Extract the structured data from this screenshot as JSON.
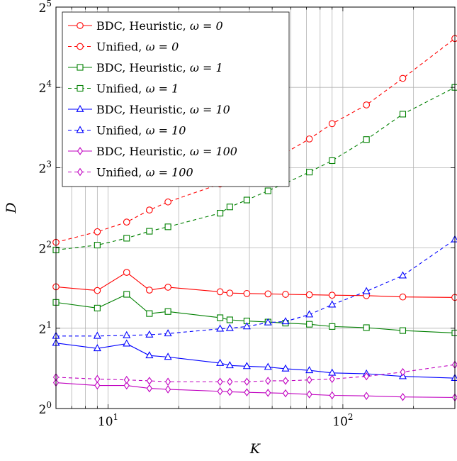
{
  "chart_data": {
    "type": "line",
    "xlabel": "K",
    "ylabel": "D",
    "x_scale": "log10",
    "y_scale": "log2",
    "xlim": [
      6,
      300
    ],
    "ylim": [
      1,
      32
    ],
    "x_tick_labels": [
      {
        "value": 10,
        "base": "10",
        "exp": "1"
      },
      {
        "value": 100,
        "base": "10",
        "exp": "2"
      }
    ],
    "y_tick_labels": [
      {
        "value": 1,
        "base": "2",
        "exp": "0"
      },
      {
        "value": 2,
        "base": "2",
        "exp": "1"
      },
      {
        "value": 4,
        "base": "2",
        "exp": "2"
      },
      {
        "value": 8,
        "base": "2",
        "exp": "3"
      },
      {
        "value": 16,
        "base": "2",
        "exp": "4"
      },
      {
        "value": 32,
        "base": "2",
        "exp": "5"
      }
    ],
    "grid": true,
    "legend_position": "top-left",
    "series": [
      {
        "name": "BDC, Heuristic,",
        "omega": "ω = 0",
        "color": "#ff0000",
        "dash": "solid",
        "marker": "circle",
        "x": [
          6,
          9,
          12,
          15,
          18,
          30,
          33,
          39,
          48,
          57,
          72,
          90,
          126,
          180,
          300
        ],
        "y": [
          2.86,
          2.77,
          3.24,
          2.78,
          2.85,
          2.74,
          2.71,
          2.7,
          2.69,
          2.68,
          2.67,
          2.66,
          2.65,
          2.62,
          2.61
        ]
      },
      {
        "name": "Unified,",
        "omega": "ω = 0",
        "color": "#ff0000",
        "dash": "dashed",
        "marker": "circle",
        "x": [
          6,
          9,
          12,
          15,
          18,
          30,
          33,
          39,
          48,
          57,
          72,
          90,
          126,
          180,
          300
        ],
        "y": [
          4.2,
          4.6,
          5.0,
          5.55,
          5.95,
          6.95,
          7.45,
          7.85,
          8.55,
          9.1,
          10.25,
          11.7,
          13.75,
          17.3,
          24.4
        ]
      },
      {
        "name": "BDC, Heuristic,",
        "omega": "ω = 1",
        "color": "#008000",
        "dash": "solid",
        "marker": "square",
        "x": [
          6,
          9,
          12,
          15,
          18,
          30,
          33,
          39,
          48,
          57,
          72,
          90,
          126,
          180,
          300
        ],
        "y": [
          2.5,
          2.38,
          2.68,
          2.27,
          2.31,
          2.19,
          2.15,
          2.13,
          2.11,
          2.09,
          2.07,
          2.03,
          2.01,
          1.96,
          1.92
        ]
      },
      {
        "name": "Unified,",
        "omega": "ω = 1",
        "color": "#008000",
        "dash": "dashed",
        "marker": "square",
        "x": [
          6,
          9,
          12,
          15,
          18,
          30,
          33,
          39,
          48,
          57,
          72,
          90,
          126,
          180,
          300
        ],
        "y": [
          3.93,
          4.1,
          4.35,
          4.62,
          4.8,
          5.4,
          5.7,
          6.05,
          6.55,
          7.0,
          7.7,
          8.5,
          10.2,
          12.7,
          16.0
        ]
      },
      {
        "name": "BDC, Heuristic,",
        "omega": "ω = 10",
        "color": "#0000ff",
        "dash": "solid",
        "marker": "triangle",
        "x": [
          6,
          9,
          12,
          15,
          18,
          30,
          33,
          39,
          48,
          57,
          72,
          90,
          126,
          180,
          300
        ],
        "y": [
          1.76,
          1.68,
          1.75,
          1.58,
          1.56,
          1.48,
          1.45,
          1.44,
          1.43,
          1.41,
          1.39,
          1.36,
          1.35,
          1.32,
          1.3
        ]
      },
      {
        "name": "Unified,",
        "omega": "ω = 10",
        "color": "#0000ff",
        "dash": "dashed",
        "marker": "triangle",
        "x": [
          6,
          9,
          12,
          15,
          18,
          30,
          33,
          39,
          48,
          57,
          72,
          90,
          126,
          180,
          300
        ],
        "y": [
          1.87,
          1.87,
          1.88,
          1.89,
          1.91,
          1.99,
          2.0,
          2.03,
          2.1,
          2.12,
          2.25,
          2.45,
          2.75,
          3.15,
          4.3
        ]
      },
      {
        "name": "BDC, Heuristic,",
        "omega": "ω = 100",
        "color": "#c000c0",
        "dash": "solid",
        "marker": "diamond",
        "x": [
          6,
          9,
          12,
          15,
          18,
          30,
          33,
          39,
          48,
          57,
          72,
          90,
          126,
          180,
          300
        ],
        "y": [
          1.25,
          1.22,
          1.22,
          1.19,
          1.18,
          1.16,
          1.155,
          1.15,
          1.145,
          1.14,
          1.13,
          1.12,
          1.115,
          1.105,
          1.1
        ]
      },
      {
        "name": "Unified,",
        "omega": "ω = 100",
        "color": "#c000c0",
        "dash": "dashed",
        "marker": "diamond",
        "x": [
          6,
          9,
          12,
          15,
          18,
          30,
          33,
          39,
          48,
          57,
          72,
          90,
          126,
          180,
          300
        ],
        "y": [
          1.31,
          1.29,
          1.28,
          1.27,
          1.26,
          1.26,
          1.26,
          1.26,
          1.27,
          1.27,
          1.28,
          1.29,
          1.32,
          1.37,
          1.46
        ]
      }
    ]
  }
}
